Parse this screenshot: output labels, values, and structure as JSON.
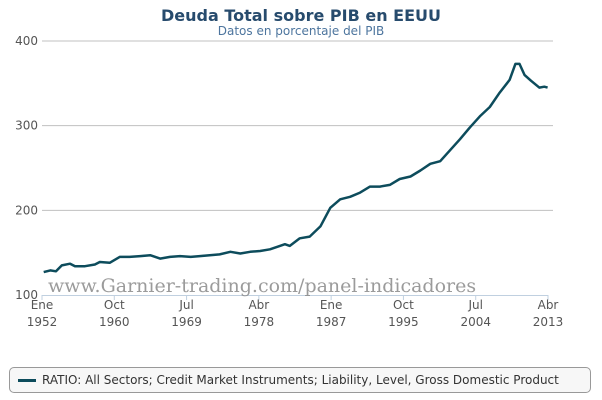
{
  "chart_data": {
    "type": "line",
    "title": "Deuda Total sobre PIB en EEUU",
    "subtitle": "Datos en porcentaje del PIB",
    "xlabel": "",
    "ylabel": "",
    "xlim": [
      1952.0,
      2013.25
    ],
    "ylim": [
      100,
      400
    ],
    "yticks": [
      "100",
      "200",
      "300",
      "400"
    ],
    "ytick_values": [
      100,
      200,
      300,
      400
    ],
    "xticks": [
      {
        "value": 1952.0,
        "month": "Ene",
        "year": "1952"
      },
      {
        "value": 1960.75,
        "month": "Oct",
        "year": "1960"
      },
      {
        "value": 1969.5,
        "month": "Jul",
        "year": "1969"
      },
      {
        "value": 1978.25,
        "month": "Abr",
        "year": "1978"
      },
      {
        "value": 1987.0,
        "month": "Ene",
        "year": "1987"
      },
      {
        "value": 1995.75,
        "month": "Oct",
        "year": "1995"
      },
      {
        "value": 2004.5,
        "month": "Jul",
        "year": "2004"
      },
      {
        "value": 2013.25,
        "month": "Abr",
        "year": "2013"
      }
    ],
    "grid": true,
    "legend_placement": "bottom",
    "watermark": "www.Garnier-trading.com/panel-indicadores",
    "series": [
      {
        "name": "RATIO: All Sectors; Credit Market Instruments; Liability, Level, Gross Domestic Product",
        "color": "#0d4c5c",
        "x": [
          1952.2,
          1953,
          1953.7,
          1954.4,
          1955.4,
          1956,
          1957.2,
          1958.4,
          1959,
          1960.2,
          1961.4,
          1962.6,
          1963.9,
          1965.1,
          1966.3,
          1967.5,
          1968.7,
          1970,
          1971.1,
          1972.3,
          1973.5,
          1974.8,
          1976,
          1977.2,
          1978.4,
          1979.6,
          1980.8,
          1981.4,
          1982,
          1983.2,
          1984.4,
          1985.7,
          1986.9,
          1988.1,
          1989.3,
          1990.5,
          1991.7,
          1992.9,
          1994.1,
          1995.3,
          1996.6,
          1997.8,
          1999,
          2000.2,
          2001.4,
          2002.6,
          2003.8,
          2005,
          2006.2,
          2007.4,
          2008.6,
          2009.3,
          2009.8,
          2010.4,
          2011.2,
          2012.2,
          2012.8,
          2013.2
        ],
        "y": [
          127,
          129,
          128,
          135,
          137,
          134,
          134,
          136,
          139,
          138,
          145,
          145,
          146,
          147,
          143,
          145,
          146,
          145,
          146,
          147,
          148,
          151,
          149,
          151,
          152,
          154,
          158,
          160,
          158,
          167,
          169,
          181,
          203,
          213,
          216,
          221,
          228,
          228,
          230,
          237,
          240,
          247,
          255,
          258,
          271,
          284,
          298,
          311,
          322,
          339,
          354,
          373,
          373,
          360,
          353,
          345,
          346,
          345
        ]
      }
    ]
  }
}
